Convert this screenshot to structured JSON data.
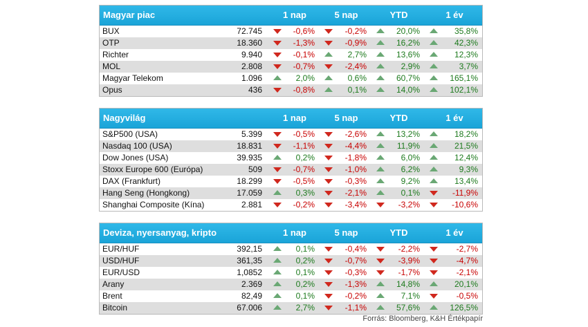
{
  "headers": [
    "1 nap",
    "5 nap",
    "YTD",
    "1 év"
  ],
  "sections": [
    {
      "title": "Magyar piac",
      "rows": [
        {
          "name": "BUX",
          "value": "72.745",
          "cells": [
            [
              "-0,6%",
              "down"
            ],
            [
              "-0,2%",
              "down"
            ],
            [
              "20,0%",
              "up"
            ],
            [
              "35,8%",
              "up"
            ]
          ]
        },
        {
          "name": "OTP",
          "value": "18.360",
          "cells": [
            [
              "-1,3%",
              "down"
            ],
            [
              "-0,9%",
              "down"
            ],
            [
              "16,2%",
              "up"
            ],
            [
              "42,3%",
              "up"
            ]
          ]
        },
        {
          "name": "Richter",
          "value": "9.940",
          "cells": [
            [
              "-0,1%",
              "down"
            ],
            [
              "2,7%",
              "up"
            ],
            [
              "13,6%",
              "up"
            ],
            [
              "12,3%",
              "up"
            ]
          ]
        },
        {
          "name": "MOL",
          "value": "2.808",
          "cells": [
            [
              "-0,7%",
              "down"
            ],
            [
              "-2,4%",
              "down"
            ],
            [
              "2,9%",
              "up"
            ],
            [
              "3,7%",
              "up"
            ]
          ]
        },
        {
          "name": "Magyar Telekom",
          "value": "1.096",
          "cells": [
            [
              "2,0%",
              "up"
            ],
            [
              "0,6%",
              "up"
            ],
            [
              "60,7%",
              "up"
            ],
            [
              "165,1%",
              "up"
            ]
          ]
        },
        {
          "name": "Opus",
          "value": "436",
          "cells": [
            [
              "-0,8%",
              "down"
            ],
            [
              "0,1%",
              "up"
            ],
            [
              "14,0%",
              "up"
            ],
            [
              "102,1%",
              "up"
            ]
          ]
        }
      ]
    },
    {
      "title": "Nagyvilág",
      "rows": [
        {
          "name": "S&P500 (USA)",
          "value": "5.399",
          "cells": [
            [
              "-0,5%",
              "down"
            ],
            [
              "-2,6%",
              "down"
            ],
            [
              "13,2%",
              "up"
            ],
            [
              "18,2%",
              "up"
            ]
          ]
        },
        {
          "name": "Nasdaq 100 (USA)",
          "value": "18.831",
          "cells": [
            [
              "-1,1%",
              "down"
            ],
            [
              "-4,4%",
              "down"
            ],
            [
              "11,9%",
              "up"
            ],
            [
              "21,5%",
              "up"
            ]
          ]
        },
        {
          "name": "Dow Jones (USA)",
          "value": "39.935",
          "cells": [
            [
              "0,2%",
              "up"
            ],
            [
              "-1,8%",
              "down"
            ],
            [
              "6,0%",
              "up"
            ],
            [
              "12,4%",
              "up"
            ]
          ]
        },
        {
          "name": "Stoxx Europe 600 (Európa)",
          "value": "509",
          "cells": [
            [
              "-0,7%",
              "down"
            ],
            [
              "-1,0%",
              "down"
            ],
            [
              "6,2%",
              "up"
            ],
            [
              "9,3%",
              "up"
            ]
          ]
        },
        {
          "name": "DAX (Frankfurt)",
          "value": "18.299",
          "cells": [
            [
              "-0,5%",
              "down"
            ],
            [
              "-0,3%",
              "down"
            ],
            [
              "9,2%",
              "up"
            ],
            [
              "13,4%",
              "up"
            ]
          ]
        },
        {
          "name": "Hang Seng (Hongkong)",
          "value": "17.059",
          "cells": [
            [
              "0,3%",
              "up"
            ],
            [
              "-2,1%",
              "down"
            ],
            [
              "0,1%",
              "up"
            ],
            [
              "-11,9%",
              "down"
            ]
          ]
        },
        {
          "name": "Shanghai Composite (Kína)",
          "value": "2.881",
          "cells": [
            [
              "-0,2%",
              "down"
            ],
            [
              "-3,4%",
              "down"
            ],
            [
              "-3,2%",
              "down"
            ],
            [
              "-10,6%",
              "down"
            ]
          ]
        }
      ]
    },
    {
      "title": "Deviza, nyersanyag, kripto",
      "rows": [
        {
          "name": "EUR/HUF",
          "value": "392,15",
          "cells": [
            [
              "0,1%",
              "up"
            ],
            [
              "-0,4%",
              "down"
            ],
            [
              "-2,2%",
              "down"
            ],
            [
              "-2,7%",
              "down"
            ]
          ]
        },
        {
          "name": "USD/HUF",
          "value": "361,35",
          "cells": [
            [
              "0,2%",
              "up"
            ],
            [
              "-0,7%",
              "down"
            ],
            [
              "-3,9%",
              "down"
            ],
            [
              "-4,7%",
              "down"
            ]
          ]
        },
        {
          "name": "EUR/USD",
          "value": "1,0852",
          "cells": [
            [
              "0,1%",
              "up"
            ],
            [
              "-0,3%",
              "down"
            ],
            [
              "-1,7%",
              "down"
            ],
            [
              "-2,1%",
              "down"
            ]
          ]
        },
        {
          "name": "Arany",
          "value": "2.369",
          "cells": [
            [
              "0,2%",
              "up"
            ],
            [
              "-1,3%",
              "down"
            ],
            [
              "14,8%",
              "up"
            ],
            [
              "20,1%",
              "up"
            ]
          ]
        },
        {
          "name": "Brent",
          "value": "82,49",
          "cells": [
            [
              "0,1%",
              "up"
            ],
            [
              "-0,2%",
              "down"
            ],
            [
              "7,1%",
              "up"
            ],
            [
              "-0,5%",
              "down"
            ]
          ]
        },
        {
          "name": "Bitcoin",
          "value": "67.006",
          "cells": [
            [
              "2,7%",
              "up"
            ],
            [
              "-1,1%",
              "down"
            ],
            [
              "57,6%",
              "up"
            ],
            [
              "126,5%",
              "up"
            ]
          ]
        }
      ]
    }
  ],
  "source": "Forrás: Bloomberg, K&H Értékpapír"
}
